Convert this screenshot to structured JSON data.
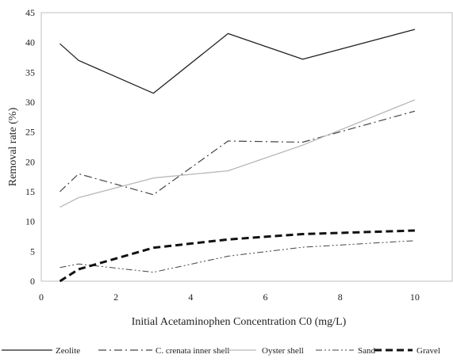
{
  "chart_data": {
    "type": "line",
    "title": "",
    "xlabel": "Initial Acetaminophen Concentration C0 (mg/L)",
    "ylabel": "Removal rate (%)",
    "xlim": [
      0,
      11
    ],
    "ylim": [
      0,
      45
    ],
    "xticks": [
      0,
      2,
      4,
      6,
      8,
      10
    ],
    "yticks": [
      0,
      5,
      10,
      15,
      20,
      25,
      30,
      35,
      40,
      45
    ],
    "grid": false,
    "legend_position": "bottom",
    "series": [
      {
        "name": "Zeolite",
        "x": [
          0.5,
          1,
          3,
          5,
          7,
          10
        ],
        "values": [
          39.8,
          37.0,
          31.5,
          41.5,
          37.2,
          42.2
        ],
        "color": "#222222",
        "dash": "solid"
      },
      {
        "name": "C. crenata inner shell",
        "x": [
          0.5,
          1,
          3,
          5,
          7,
          10
        ],
        "values": [
          15.0,
          18.0,
          14.5,
          23.5,
          23.3,
          28.5
        ],
        "color": "#444444",
        "dash": "dashdot"
      },
      {
        "name": "Oyster shell",
        "x": [
          0.5,
          1,
          3,
          5,
          7,
          10
        ],
        "values": [
          12.4,
          14.0,
          17.3,
          18.5,
          22.8,
          30.4
        ],
        "color": "#b8b8b8",
        "dash": "solid"
      },
      {
        "name": "Sand",
        "x": [
          0.5,
          1,
          3,
          5,
          7,
          10
        ],
        "values": [
          2.3,
          2.9,
          1.5,
          4.2,
          5.7,
          6.8
        ],
        "color": "#444444",
        "dash": "dashdotdot"
      },
      {
        "name": "Gravel",
        "x": [
          0.5,
          1,
          3,
          5,
          7,
          10
        ],
        "values": [
          0.0,
          2.0,
          5.6,
          7.0,
          7.9,
          8.5
        ],
        "color": "#111111",
        "dash": "heavydash"
      }
    ]
  }
}
